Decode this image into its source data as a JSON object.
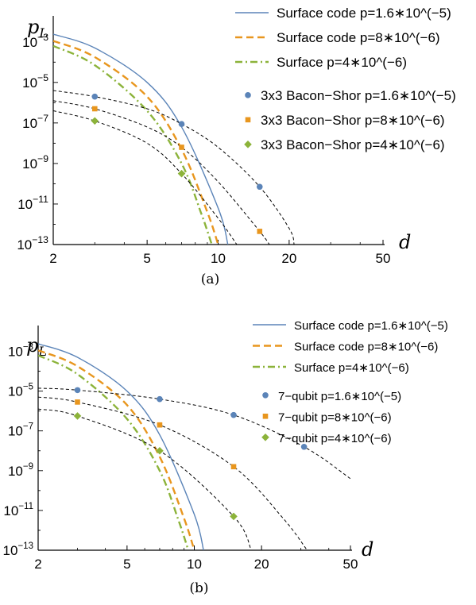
{
  "chart_data": [
    {
      "type": "line",
      "caption": "(a)",
      "xlabel": "d",
      "ylabel": "p",
      "ylabel_sub": "L",
      "x_scale": "log",
      "y_scale": "log",
      "xlim": [
        2,
        50
      ],
      "ylim_exp": [
        -13,
        -2.5
      ],
      "x_ticks": [
        "2",
        "5",
        "10",
        "20",
        "50"
      ],
      "y_ticks": [
        {
          "base": "10",
          "exp": "−3",
          "e": -3
        },
        {
          "base": "10",
          "exp": "−5",
          "e": -5
        },
        {
          "base": "10",
          "exp": "−7",
          "e": -7
        },
        {
          "base": "10",
          "exp": "−9",
          "e": -9
        },
        {
          "base": "10",
          "exp": "−11",
          "e": -11
        },
        {
          "base": "10",
          "exp": "−13",
          "e": -13
        }
      ],
      "series": [
        {
          "name": "Surface code p=1.6∗10^(−5)",
          "kind": "curve",
          "color": "#5b84b8",
          "dash": "",
          "points": [
            [
              2,
              -2.62
            ],
            [
              3,
              -3.3
            ],
            [
              5,
              -5.0
            ],
            [
              7,
              -7.2
            ],
            [
              10,
              -11.2
            ],
            [
              11,
              -13.0
            ]
          ]
        },
        {
          "name": "Surface code p=8∗10^(−6)",
          "kind": "curve",
          "color": "#e8961e",
          "dash": "9 5",
          "points": [
            [
              2,
              -2.95
            ],
            [
              3,
              -3.75
            ],
            [
              5,
              -5.7
            ],
            [
              7,
              -8.3
            ],
            [
              9,
              -11.4
            ],
            [
              10,
              -13.0
            ]
          ]
        },
        {
          "name": "Surface p=4∗10^(−6)",
          "kind": "curve",
          "color": "#8cb33a",
          "dash": "9 4 2 4",
          "points": [
            [
              2,
              -3.2
            ],
            [
              3,
              -4.15
            ],
            [
              5,
              -6.4
            ],
            [
              7,
              -9.0
            ],
            [
              8.5,
              -11.5
            ],
            [
              9.4,
              -13.0
            ]
          ]
        },
        {
          "name": "3x3 Bacon−Shor p=1.6∗10^(−5)",
          "kind": "markers",
          "marker": "circle",
          "color": "#5b84b8",
          "points": [
            [
              3,
              -5.7
            ],
            [
              7,
              -7.05
            ],
            [
              15,
              -10.15
            ]
          ],
          "fit": [
            [
              2,
              -5.4
            ],
            [
              3,
              -5.7
            ],
            [
              5,
              -6.3
            ],
            [
              7,
              -7.05
            ],
            [
              10,
              -8.2
            ],
            [
              15,
              -10.15
            ],
            [
              20,
              -12.2
            ],
            [
              21,
              -13.0
            ]
          ]
        },
        {
          "name": "3x3 Bacon−Shor p=8∗10^(−6)",
          "kind": "markers",
          "marker": "square",
          "color": "#e8961e",
          "points": [
            [
              3,
              -6.3
            ],
            [
              7,
              -8.2
            ],
            [
              15,
              -12.35
            ]
          ],
          "fit": [
            [
              2,
              -5.9
            ],
            [
              3,
              -6.3
            ],
            [
              5,
              -7.2
            ],
            [
              7,
              -8.2
            ],
            [
              10,
              -9.9
            ],
            [
              15,
              -12.35
            ],
            [
              16.5,
              -13.0
            ]
          ]
        },
        {
          "name": "3x3 Bacon−Shor p=4∗10^(−6)",
          "kind": "markers",
          "marker": "diamond",
          "color": "#8cb33a",
          "points": [
            [
              3,
              -6.9
            ],
            [
              7,
              -9.5
            ]
          ],
          "fit": [
            [
              2,
              -6.4
            ],
            [
              3,
              -6.9
            ],
            [
              5,
              -8.0
            ],
            [
              7,
              -9.5
            ],
            [
              10,
              -11.7
            ],
            [
              12,
              -13.0
            ]
          ]
        }
      ]
    },
    {
      "type": "line",
      "caption": "(b)",
      "xlabel": "d",
      "ylabel": "p",
      "ylabel_sub": "L",
      "x_scale": "log",
      "y_scale": "log",
      "xlim": [
        2,
        50
      ],
      "ylim_exp": [
        -13,
        -2.5
      ],
      "x_ticks": [
        "2",
        "5",
        "10",
        "20",
        "50"
      ],
      "y_ticks": [
        {
          "base": "10",
          "exp": "−3",
          "e": -3
        },
        {
          "base": "10",
          "exp": "−5",
          "e": -5
        },
        {
          "base": "10",
          "exp": "−7",
          "e": -7
        },
        {
          "base": "10",
          "exp": "−9",
          "e": -9
        },
        {
          "base": "10",
          "exp": "−11",
          "e": -11
        },
        {
          "base": "10",
          "exp": "−13",
          "e": -13
        }
      ],
      "series": [
        {
          "name": "Surface code p=1.6∗10^(−5)",
          "kind": "curve",
          "color": "#5b84b8",
          "dash": "",
          "points": [
            [
              2,
              -2.62
            ],
            [
              3,
              -3.3
            ],
            [
              5,
              -5.0
            ],
            [
              7,
              -7.2
            ],
            [
              10,
              -11.2
            ],
            [
              11,
              -13.0
            ]
          ]
        },
        {
          "name": "Surface code p=8∗10^(−6)",
          "kind": "curve",
          "color": "#e8961e",
          "dash": "9 5",
          "points": [
            [
              2,
              -2.95
            ],
            [
              3,
              -3.75
            ],
            [
              5,
              -5.7
            ],
            [
              7,
              -8.3
            ],
            [
              9,
              -11.4
            ],
            [
              10,
              -13.0
            ]
          ]
        },
        {
          "name": "Surface p=4∗10^(−6)",
          "kind": "curve",
          "color": "#8cb33a",
          "dash": "9 4 2 4",
          "points": [
            [
              2,
              -3.2
            ],
            [
              3,
              -4.15
            ],
            [
              5,
              -6.4
            ],
            [
              7,
              -9.0
            ],
            [
              8.5,
              -11.5
            ],
            [
              9.4,
              -13.0
            ]
          ]
        },
        {
          "name": "7−qubit p=1.6∗10^(−5)",
          "kind": "markers",
          "marker": "circle",
          "color": "#5b84b8",
          "points": [
            [
              3,
              -4.95
            ],
            [
              7,
              -5.4
            ],
            [
              15,
              -6.2
            ],
            [
              31,
              -7.8
            ]
          ],
          "fit": [
            [
              2,
              -4.85
            ],
            [
              3,
              -4.95
            ],
            [
              7,
              -5.4
            ],
            [
              15,
              -6.2
            ],
            [
              31,
              -7.8
            ],
            [
              50,
              -9.4
            ]
          ]
        },
        {
          "name": "7−qubit p=8∗10^(−6)",
          "kind": "markers",
          "marker": "square",
          "color": "#e8961e",
          "points": [
            [
              3,
              -5.55
            ],
            [
              7,
              -6.7
            ],
            [
              15,
              -8.8
            ]
          ],
          "fit": [
            [
              2,
              -5.3
            ],
            [
              3,
              -5.55
            ],
            [
              7,
              -6.7
            ],
            [
              15,
              -8.8
            ],
            [
              25,
              -11.4
            ],
            [
              32,
              -13.0
            ]
          ]
        },
        {
          "name": "7−qubit p=4∗10^(−6)",
          "kind": "markers",
          "marker": "diamond",
          "color": "#8cb33a",
          "points": [
            [
              3,
              -6.25
            ],
            [
              7,
              -8.0
            ],
            [
              15,
              -11.3
            ]
          ],
          "fit": [
            [
              2,
              -5.9
            ],
            [
              3,
              -6.25
            ],
            [
              7,
              -8.0
            ],
            [
              15,
              -11.3
            ],
            [
              18,
              -13.0
            ]
          ]
        }
      ]
    }
  ]
}
